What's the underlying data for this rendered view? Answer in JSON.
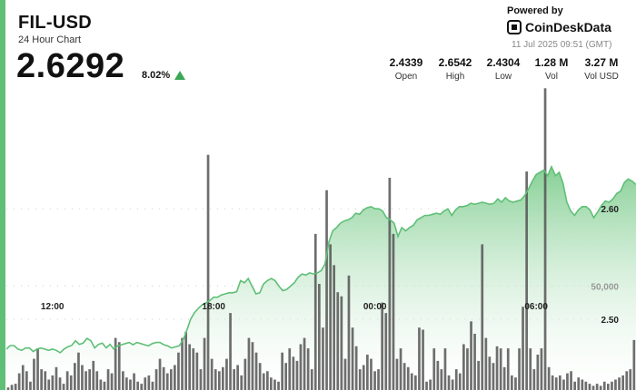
{
  "header": {
    "pair": "FIL-USD",
    "subtitle": "24 Hour Chart",
    "price": "2.6292",
    "change": "8.02%",
    "powered_by": "Powered by",
    "brand": "CoinDeskData",
    "timestamp": "11 Jul 2025 09:51 (GMT)"
  },
  "stats": [
    {
      "value": "2.4339",
      "label": "Open"
    },
    {
      "value": "2.6542",
      "label": "High"
    },
    {
      "value": "2.4304",
      "label": "Low"
    },
    {
      "value": "1.28 M",
      "label": "Vol"
    },
    {
      "value": "3.27 M",
      "label": "Vol USD"
    }
  ],
  "colors": {
    "accent": "#5fbf77",
    "line": "#5fbf77",
    "fill_top": "#7fcd8f",
    "volume": "#555555",
    "up": "#3aa757"
  },
  "chart_data": {
    "type": "area",
    "x_tick_labels": [
      "12:00",
      "18:00",
      "00:00",
      "06:00"
    ],
    "x_tick_index": [
      12,
      54,
      96,
      138
    ],
    "y_tick_labels": [
      "2.60",
      "2.50"
    ],
    "y_ticks": [
      2.6,
      2.5
    ],
    "ylim": [
      2.436,
      2.711
    ],
    "grid": true,
    "volume_tick_label": "50,000",
    "volume_tick": 50000,
    "volume_lim": [
      0,
      146000
    ],
    "price": [
      2.473,
      2.4762,
      2.4762,
      2.473,
      2.4719,
      2.474,
      2.474,
      2.4708,
      2.473,
      2.474,
      2.473,
      2.4719,
      2.473,
      2.4719,
      2.4697,
      2.473,
      2.4751,
      2.4762,
      2.4806,
      2.4773,
      2.4784,
      2.4827,
      2.4806,
      2.4741,
      2.4773,
      2.4784,
      2.4741,
      2.4773,
      2.473,
      2.476,
      2.477,
      2.478,
      2.479,
      2.477,
      2.479,
      2.478,
      2.477,
      2.476,
      2.478,
      2.479,
      2.479,
      2.477,
      2.476,
      2.474,
      2.475,
      2.476,
      2.481,
      2.49,
      2.5,
      2.506,
      2.51,
      2.513,
      2.515,
      2.517,
      2.52,
      2.52,
      2.522,
      2.523,
      2.524,
      2.524,
      2.525,
      2.535,
      2.533,
      2.537,
      2.53,
      2.523,
      2.524,
      2.532,
      2.535,
      2.537,
      2.535,
      2.53,
      2.526,
      2.527,
      2.53,
      2.533,
      2.538,
      2.541,
      2.54,
      2.542,
      2.541,
      2.542,
      2.544,
      2.55,
      2.57,
      2.58,
      2.583,
      2.587,
      2.589,
      2.59,
      2.592,
      2.596,
      2.595,
      2.599,
      2.601,
      2.602,
      2.6,
      2.6,
      2.598,
      2.592,
      2.59,
      2.587,
      2.575,
      2.583,
      2.58,
      2.583,
      2.585,
      2.59,
      2.592,
      2.594,
      2.594,
      2.595,
      2.596,
      2.595,
      2.598,
      2.6,
      2.594,
      2.599,
      2.602,
      2.602,
      2.603,
      2.605,
      2.604,
      2.605,
      2.606,
      2.605,
      2.604,
      2.605,
      2.609,
      2.606,
      2.61,
      2.607,
      2.606,
      2.607,
      2.608,
      2.612,
      2.618,
      2.625,
      2.631,
      2.633,
      2.635,
      2.63,
      2.638,
      2.63,
      2.633,
      2.623,
      2.606,
      2.598,
      2.594,
      2.599,
      2.602,
      2.602,
      2.599,
      2.592,
      2.597,
      2.603,
      2.607,
      2.606,
      2.609,
      2.614,
      2.616,
      2.624,
      2.627,
      2.625,
      2.622
    ],
    "volume": [
      1200,
      2500,
      3000,
      8000,
      12000,
      9000,
      4000,
      15000,
      20000,
      10000,
      9000,
      5000,
      7000,
      11000,
      6000,
      3000,
      9000,
      7000,
      13000,
      18000,
      12000,
      9000,
      10000,
      14000,
      9000,
      5000,
      4000,
      10000,
      8000,
      25000,
      23000,
      9000,
      6000,
      5000,
      8000,
      4000,
      3000,
      6000,
      7000,
      4000,
      10000,
      15000,
      11000,
      8000,
      10000,
      12000,
      18000,
      25000,
      28000,
      22000,
      20000,
      18000,
      10000,
      25000,
      113000,
      15000,
      10000,
      9000,
      11000,
      15000,
      37000,
      10000,
      12000,
      7000,
      15000,
      25000,
      23000,
      18000,
      13000,
      8000,
      9000,
      6000,
      5000,
      4000,
      18000,
      13000,
      20000,
      16000,
      14000,
      22000,
      25000,
      20000,
      10000,
      75000,
      51000,
      30000,
      96000,
      70000,
      60000,
      47000,
      45000,
      15000,
      55000,
      30000,
      21000,
      10000,
      12000,
      17000,
      15000,
      9000,
      10000,
      42000,
      37000,
      102000,
      75000,
      15000,
      20000,
      13000,
      11000,
      8000,
      7000,
      30000,
      29000,
      4000,
      5000,
      20000,
      14000,
      10000,
      20000,
      7000,
      5000,
      10000,
      8000,
      22000,
      20000,
      33000,
      27000,
      14000,
      70000,
      25000,
      16000,
      13000,
      21000,
      20000,
      11000,
      20000,
      7000,
      6000,
      20000,
      40000,
      105000,
      20000,
      10000,
      17000,
      20000,
      145000,
      11000,
      7000,
      6000,
      7000,
      5000,
      8000,
      9000,
      4000,
      6000,
      5000,
      4000,
      3000,
      2000,
      3000,
      2000,
      4000,
      3000,
      4000,
      5000,
      6000,
      7000,
      9000,
      10000,
      24000
    ]
  }
}
